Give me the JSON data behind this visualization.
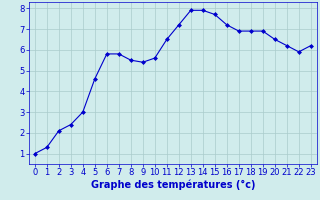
{
  "x": [
    0,
    1,
    2,
    3,
    4,
    5,
    6,
    7,
    8,
    9,
    10,
    11,
    12,
    13,
    14,
    15,
    16,
    17,
    18,
    19,
    20,
    21,
    22,
    23
  ],
  "y": [
    1.0,
    1.3,
    2.1,
    2.4,
    3.0,
    4.6,
    5.8,
    5.8,
    5.5,
    5.4,
    5.6,
    6.5,
    7.2,
    7.9,
    7.9,
    7.7,
    7.2,
    6.9,
    6.9,
    6.9,
    6.5,
    6.2,
    5.9,
    6.2
  ],
  "line_color": "#0000cc",
  "marker": "D",
  "marker_size": 2,
  "bg_color": "#d0ecec",
  "grid_color": "#aacccc",
  "xlabel": "Graphe des températures (°c)",
  "xlabel_color": "#0000cc",
  "xlabel_fontsize": 7,
  "tick_color": "#0000cc",
  "tick_fontsize": 6,
  "ylim": [
    0.5,
    8.3
  ],
  "xlim": [
    -0.5,
    23.5
  ],
  "yticks": [
    1,
    2,
    3,
    4,
    5,
    6,
    7,
    8
  ],
  "xtick_labels": [
    "0",
    "1",
    "2",
    "3",
    "4",
    "5",
    "6",
    "7",
    "8",
    "9",
    "10",
    "11",
    "12",
    "13",
    "14",
    "15",
    "16",
    "17",
    "18",
    "19",
    "20",
    "21",
    "22",
    "23"
  ]
}
